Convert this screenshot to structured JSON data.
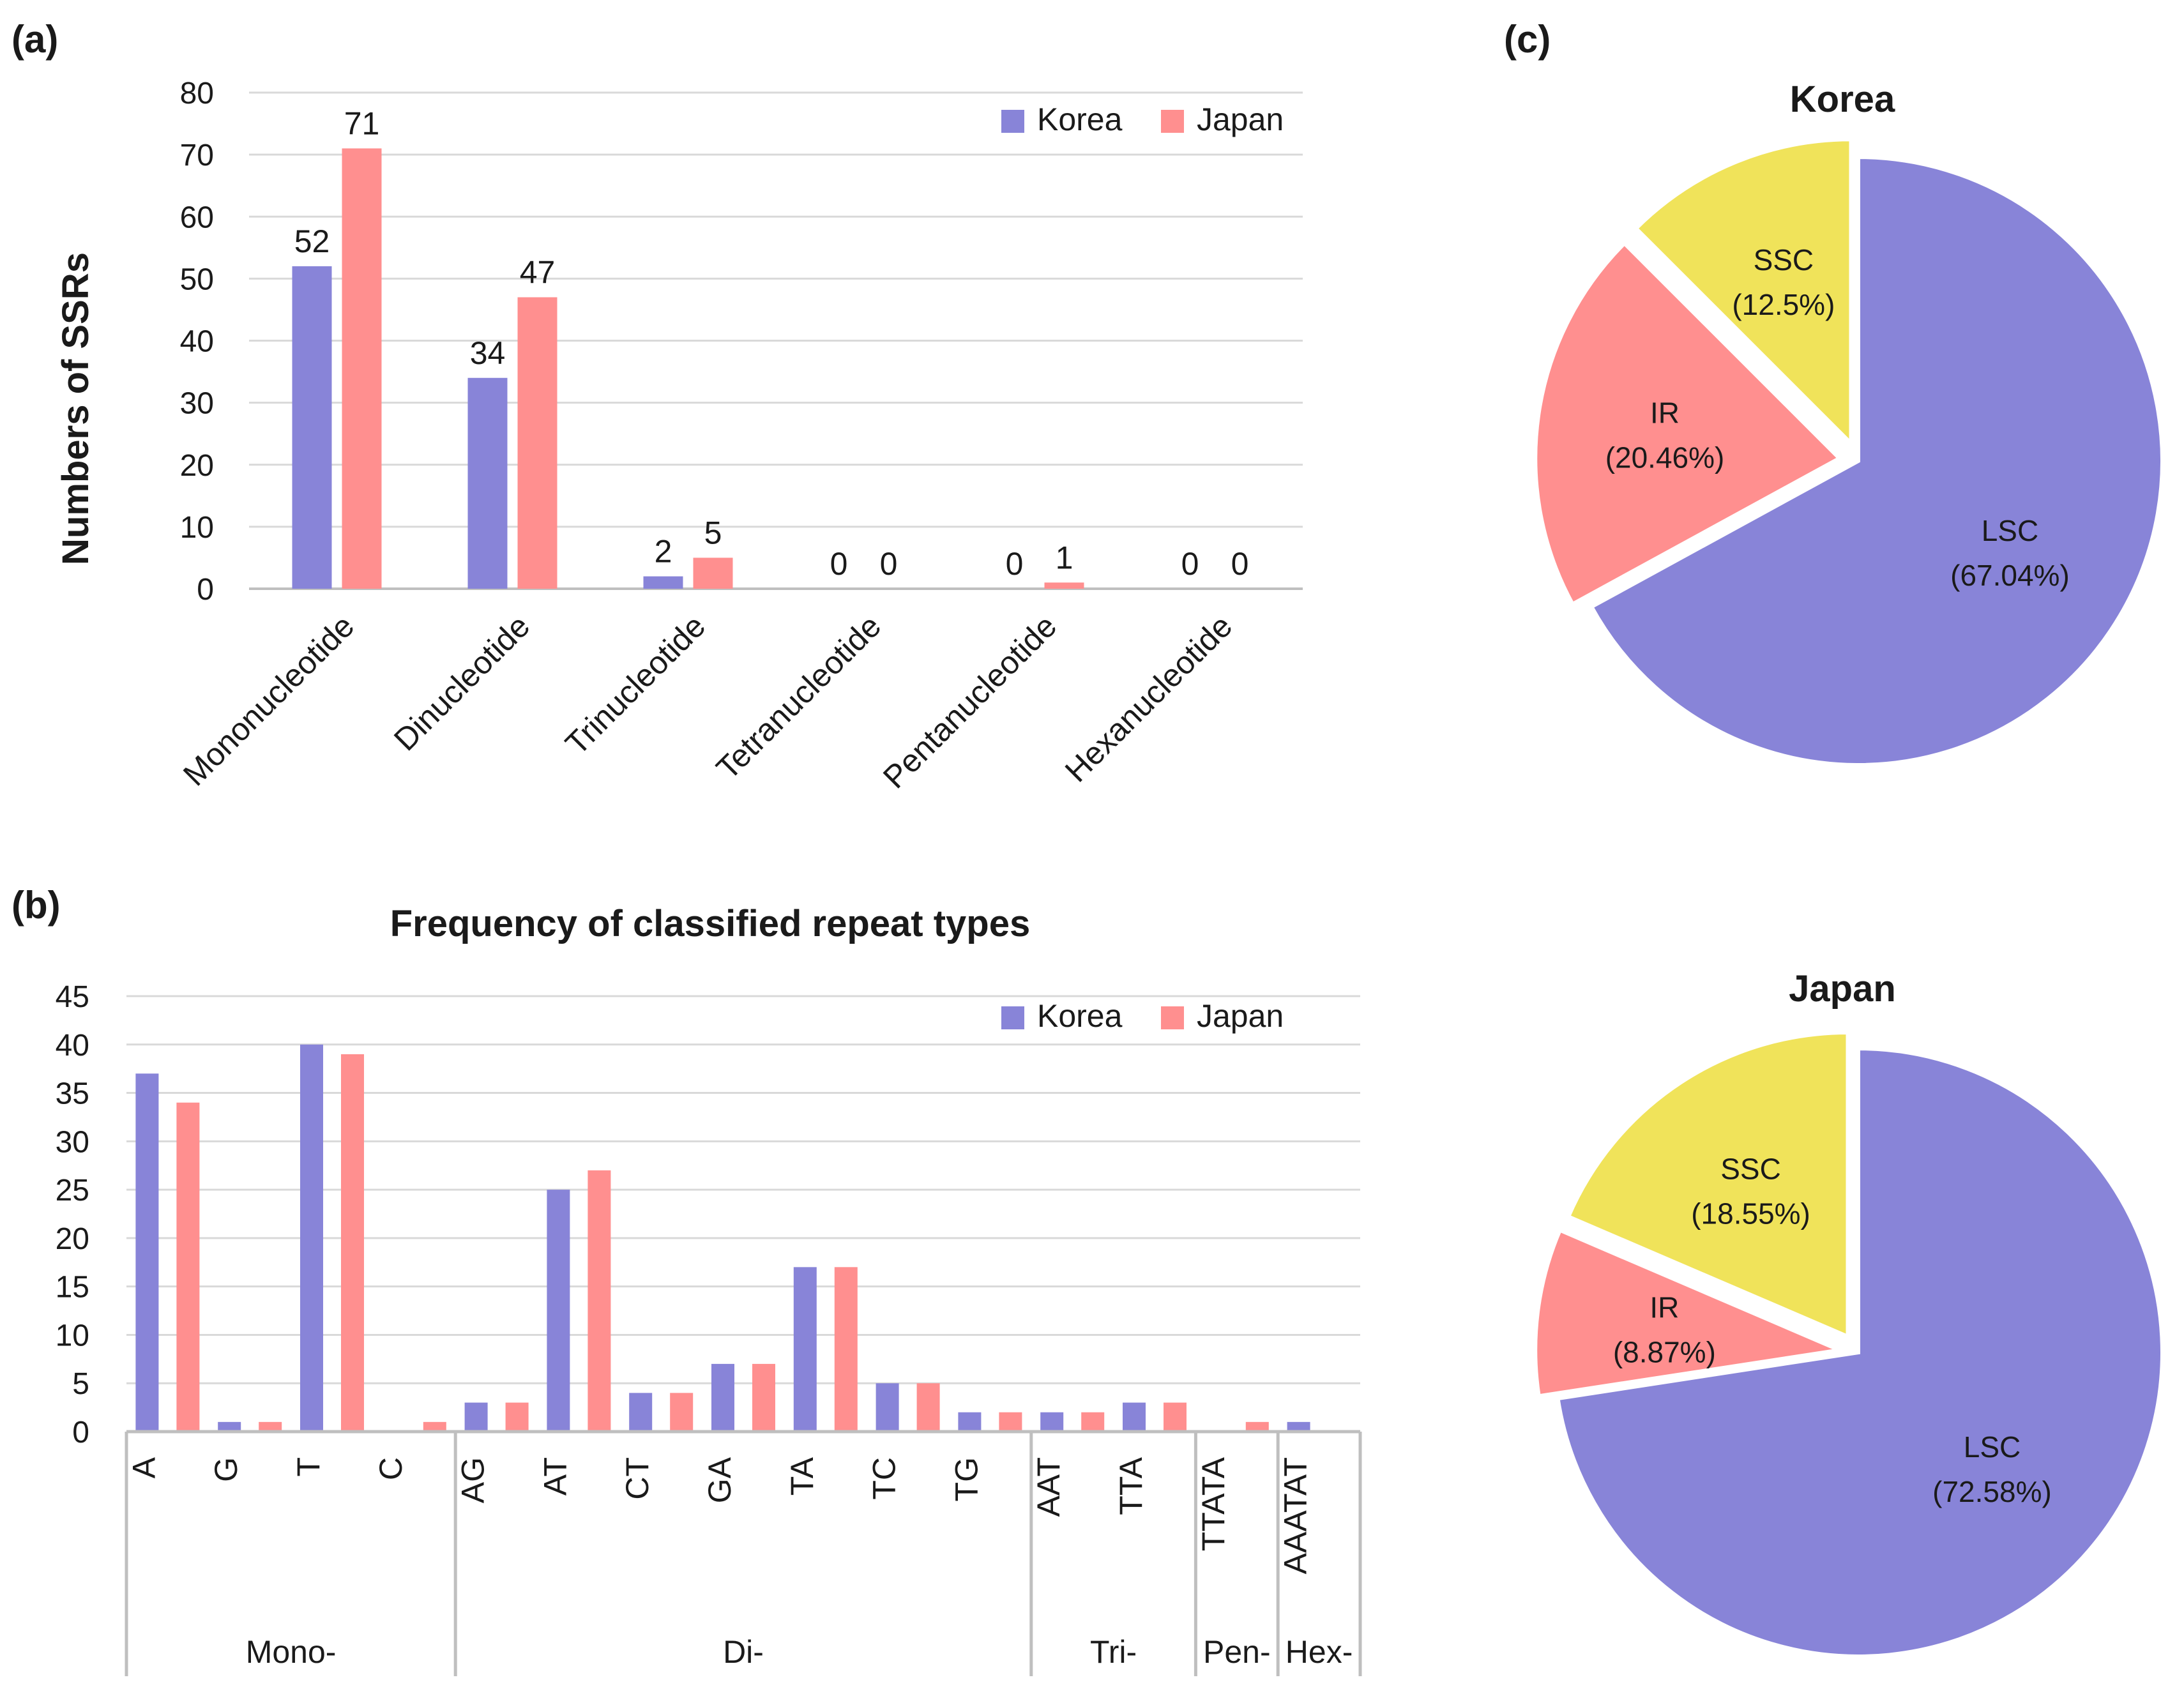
{
  "panels": {
    "a": "(a)",
    "b": "(b)",
    "c": "(c)"
  },
  "colors": {
    "korea": "#8884d8",
    "japan": "#ff8f8f",
    "ssc": "#f0e35a",
    "grid": "#d9d9d9",
    "axis": "#bfbfbf"
  },
  "chart_data": [
    {
      "id": "a",
      "type": "bar",
      "title": "",
      "xlabel": "",
      "ylabel": "Numbers of SSRs",
      "ylim": [
        0,
        80
      ],
      "yticks": [
        0,
        10,
        20,
        30,
        40,
        50,
        60,
        70,
        80
      ],
      "grid": true,
      "legend": "top-right",
      "categories": [
        "Mononucleotide",
        "Dinucleotide",
        "Trinucleotide",
        "Tetranucleotide",
        "Pentanucleotide",
        "Hexanucleotide"
      ],
      "series": [
        {
          "name": "Korea",
          "values": [
            52,
            34,
            2,
            0,
            0,
            0
          ]
        },
        {
          "name": "Japan",
          "values": [
            71,
            47,
            5,
            0,
            1,
            0
          ]
        }
      ]
    },
    {
      "id": "b",
      "type": "bar",
      "title": "Frequency of classified repeat types",
      "xlabel": "",
      "ylabel": "",
      "ylim": [
        0,
        45
      ],
      "yticks": [
        0,
        5,
        10,
        15,
        20,
        25,
        30,
        35,
        40,
        45
      ],
      "grid": true,
      "legend": "top-right",
      "categories": [
        "A",
        "G",
        "T",
        "C",
        "AG",
        "AT",
        "CT",
        "GA",
        "TA",
        "TC",
        "TG",
        "AAT",
        "TTA",
        "TTATA",
        "AAATAT"
      ],
      "groups": [
        {
          "label": "Mono-",
          "count": 4
        },
        {
          "label": "Di-",
          "count": 7
        },
        {
          "label": "Tri-",
          "count": 2
        },
        {
          "label": "Pen-",
          "count": 1
        },
        {
          "label": "Hex-",
          "count": 1
        }
      ],
      "series": [
        {
          "name": "Korea",
          "values": [
            37,
            1,
            40,
            0,
            3,
            25,
            4,
            7,
            17,
            5,
            2,
            2,
            3,
            0,
            1
          ]
        },
        {
          "name": "Japan",
          "values": [
            34,
            1,
            39,
            1,
            3,
            27,
            4,
            7,
            17,
            5,
            2,
            2,
            3,
            1,
            0
          ]
        }
      ]
    },
    {
      "id": "c-korea",
      "type": "pie",
      "title": "Korea",
      "slices": [
        {
          "label": "LSC",
          "pct_text": "(67.04%)",
          "value": 67.04
        },
        {
          "label": "IR",
          "pct_text": "(20.46%)",
          "value": 20.46
        },
        {
          "label": "SSC",
          "pct_text": "(12.5%)",
          "value": 12.5
        }
      ]
    },
    {
      "id": "c-japan",
      "type": "pie",
      "title": "Japan",
      "slices": [
        {
          "label": "LSC",
          "pct_text": "(72.58%)",
          "value": 72.58
        },
        {
          "label": "IR",
          "pct_text": "(8.87%)",
          "value": 8.87
        },
        {
          "label": "SSC",
          "pct_text": "(18.55%)",
          "value": 18.55
        }
      ]
    }
  ]
}
